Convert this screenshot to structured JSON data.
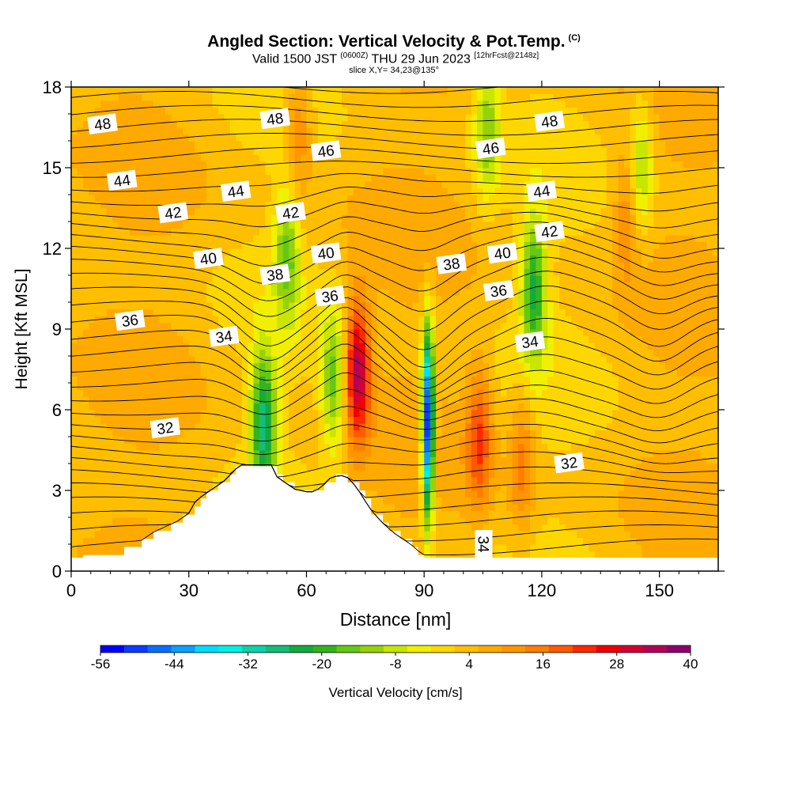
{
  "header": {
    "title_main": "Angled Section: Vertical Velocity & Pot.Temp.",
    "title_mark": "(C)",
    "valid_prefix": "Valid 1500 JST",
    "valid_utc": "(0600Z)",
    "valid_date": "THU 29 Jun 2023",
    "valid_fcst": "[12hrFcst@2148z]",
    "slice": "slice X,Y= 34,23@135°"
  },
  "chart_data": {
    "type": "heatmap",
    "xlabel": "Distance [nm]",
    "ylabel": "Height [Kft MSL]",
    "xlim": [
      0,
      165
    ],
    "ylim": [
      0,
      18
    ],
    "x_ticks": [
      0,
      30,
      60,
      90,
      120,
      150
    ],
    "y_ticks": [
      0,
      3,
      6,
      9,
      12,
      15,
      18
    ],
    "colorbar": {
      "label": "Vertical Velocity [cm/s]",
      "ticks": [
        -56,
        -44,
        -32,
        -20,
        -8,
        4,
        16,
        28,
        40
      ],
      "range": [
        -56,
        40
      ],
      "step": 4,
      "colors": [
        "#0000ff",
        "#0a3cff",
        "#0a6eff",
        "#0aa0ff",
        "#00dcff",
        "#00f0e6",
        "#0cd2aa",
        "#14be78",
        "#14aa3c",
        "#32b41e",
        "#64c814",
        "#96d20a",
        "#c8e600",
        "#f0f000",
        "#ffd700",
        "#ffbe00",
        "#ffaa00",
        "#ff9600",
        "#ff7d00",
        "#ff5a00",
        "#ff2800",
        "#f00000",
        "#d20032",
        "#b4005a",
        "#8c006e"
      ]
    },
    "theta_contour_labels": [
      {
        "label": "48",
        "x": 8,
        "z": 16.6
      },
      {
        "label": "48",
        "x": 52,
        "z": 16.8
      },
      {
        "label": "48",
        "x": 122,
        "z": 16.7
      },
      {
        "label": "46",
        "x": 65,
        "z": 15.6
      },
      {
        "label": "46",
        "x": 107,
        "z": 15.7
      },
      {
        "label": "44",
        "x": 13,
        "z": 14.5
      },
      {
        "label": "44",
        "x": 42,
        "z": 14.1
      },
      {
        "label": "44",
        "x": 120,
        "z": 14.1
      },
      {
        "label": "42",
        "x": 26,
        "z": 13.3
      },
      {
        "label": "42",
        "x": 56,
        "z": 13.3
      },
      {
        "label": "42",
        "x": 122,
        "z": 12.6
      },
      {
        "label": "40",
        "x": 35,
        "z": 11.6
      },
      {
        "label": "40",
        "x": 65,
        "z": 11.8
      },
      {
        "label": "40",
        "x": 110,
        "z": 11.8
      },
      {
        "label": "38",
        "x": 52,
        "z": 11.0
      },
      {
        "label": "38",
        "x": 97,
        "z": 11.4
      },
      {
        "label": "36",
        "x": 15,
        "z": 9.3
      },
      {
        "label": "36",
        "x": 66,
        "z": 10.2
      },
      {
        "label": "36",
        "x": 109,
        "z": 10.4
      },
      {
        "label": "34",
        "x": 39,
        "z": 8.7
      },
      {
        "label": "34",
        "x": 117,
        "z": 8.5
      },
      {
        "label": "34",
        "x": 105,
        "z": 1.0
      },
      {
        "label": "32",
        "x": 24,
        "z": 5.3
      },
      {
        "label": "32",
        "x": 127,
        "z": 4.0
      }
    ],
    "vertical_velocity_features": [
      {
        "x": 49,
        "z": 5.5,
        "w": -26
      },
      {
        "x": 67,
        "z": 7.0,
        "w": -14
      },
      {
        "x": 91,
        "z": 5.5,
        "w": -56
      },
      {
        "x": 73,
        "z": 7.5,
        "w": 38
      },
      {
        "x": 104,
        "z": 5.0,
        "w": 24
      },
      {
        "x": 115,
        "z": 4.0,
        "w": 18
      },
      {
        "x": 118,
        "z": 10.5,
        "w": -20
      },
      {
        "x": 55,
        "z": 11.8,
        "w": -12
      },
      {
        "x": 142,
        "z": 13.5,
        "w": 18
      },
      {
        "x": 145,
        "z": 15.0,
        "w": -10
      },
      {
        "x": 58,
        "z": 16.5,
        "w": 18
      },
      {
        "x": 106,
        "z": 16.5,
        "w": -10
      }
    ]
  }
}
